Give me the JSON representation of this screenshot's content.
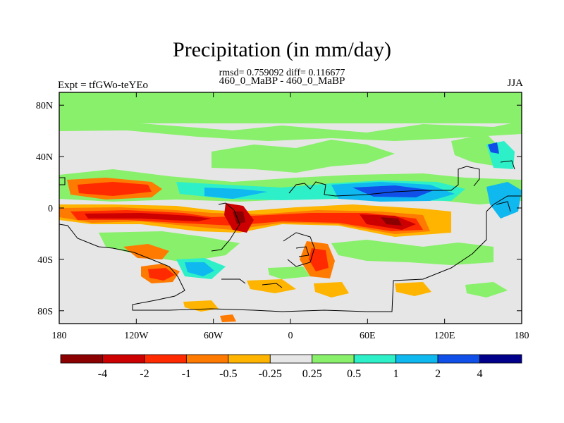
{
  "chart_data": {
    "type": "heatmap",
    "title": "Precipitation (in mm/day)",
    "subtitle": "rmsd= 0.759092 diff= 0.116677",
    "subtitle2": "460_0_MaBP - 460_0_MaBP",
    "left_label": "Expt = tfGWo-teYEo",
    "right_label": "JJA",
    "projection": "cylindrical equidistant",
    "xlim": [
      -180,
      180
    ],
    "ylim": [
      -90,
      90
    ],
    "x_ticks": [
      {
        "value": -180,
        "label": "180"
      },
      {
        "value": -120,
        "label": "120W"
      },
      {
        "value": -60,
        "label": "60W"
      },
      {
        "value": 0,
        "label": "0"
      },
      {
        "value": 60,
        "label": "60E"
      },
      {
        "value": 120,
        "label": "120E"
      },
      {
        "value": 180,
        "label": "180"
      }
    ],
    "y_ticks": [
      {
        "value": 80,
        "label": "80N"
      },
      {
        "value": 40,
        "label": "40N"
      },
      {
        "value": 0,
        "label": "0"
      },
      {
        "value": -40,
        "label": "40S"
      },
      {
        "value": -80,
        "label": "80S"
      }
    ],
    "levels": [
      "-4",
      "-2",
      "-1",
      "-0.5",
      "-0.25",
      "0.25",
      "0.5",
      "1",
      "2",
      "4"
    ],
    "colors": [
      "#8b0000",
      "#cc0000",
      "#ff2a00",
      "#ff7a00",
      "#ffb400",
      "#e6e6e6",
      "#88f06a",
      "#2ef0c8",
      "#10b8f0",
      "#1050e8",
      "#00008b"
    ],
    "anomaly_features": [
      {
        "lon": -40,
        "lat": 80,
        "value": 0.4
      },
      {
        "lon": 40,
        "lat": 68,
        "value": 0.4
      },
      {
        "lon": -140,
        "lat": 10,
        "value": -1.5
      },
      {
        "lon": -75,
        "lat": 10,
        "value": 1
      },
      {
        "lon": -25,
        "lat": 8,
        "value": 0.7
      },
      {
        "lon": 70,
        "lat": 10,
        "value": 2
      },
      {
        "lon": -140,
        "lat": -7,
        "value": -3
      },
      {
        "lon": -60,
        "lat": -5,
        "value": -1.5
      },
      {
        "lon": -35,
        "lat": -5,
        "value": -3
      },
      {
        "lon": 80,
        "lat": -7,
        "value": -3
      },
      {
        "lon": 140,
        "lat": -3,
        "value": 0.7
      },
      {
        "lon": 150,
        "lat": 15,
        "value": 1
      },
      {
        "lon": -80,
        "lat": -45,
        "value": 1
      },
      {
        "lon": 25,
        "lat": -40,
        "value": -1.5
      },
      {
        "lon": -90,
        "lat": -55,
        "value": -0.5
      },
      {
        "lon": 30,
        "lat": -65,
        "value": -0.5
      }
    ]
  }
}
